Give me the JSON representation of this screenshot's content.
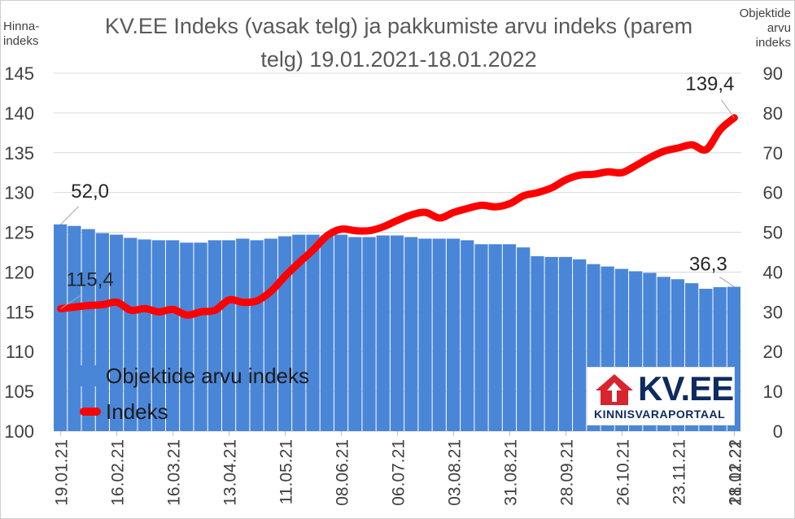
{
  "title_line1": "KV.EE Indeks (vasak telg) ja pakkumiste arvu indeks (parem",
  "title_line2": "telg) 19.01.2021-18.01.2022",
  "left_axis_caption": [
    "Hinna-",
    "indeks"
  ],
  "right_axis_caption": [
    "Objektide",
    "arvu",
    "indeks"
  ],
  "logo": {
    "brand": "KV.EE",
    "subtitle": "KINNISVARAPORTAAL",
    "icon": "house-arrow-icon"
  },
  "colors": {
    "bars": "#4a86d8",
    "line": "#ff0000",
    "grid": "#d9d9d9",
    "text": "#404040"
  },
  "chart_data": {
    "type": "bar+line",
    "left_axis": {
      "min": 100,
      "max": 145,
      "step": 5,
      "ticks": [
        "100",
        "105",
        "110",
        "115",
        "120",
        "125",
        "130",
        "135",
        "140",
        "145"
      ]
    },
    "right_axis": {
      "min": 0,
      "max": 90,
      "step": 10,
      "ticks": [
        "0",
        "10",
        "20",
        "30",
        "40",
        "50",
        "60",
        "70",
        "80",
        "90"
      ]
    },
    "x_tick_labels": [
      "19.01.21",
      "16.02.21",
      "16.03.21",
      "13.04.21",
      "11.05.21",
      "08.06.21",
      "06.07.21",
      "03.08.21",
      "31.08.21",
      "28.09.21",
      "26.10.21",
      "23.11.21",
      "21.12.21",
      "18.01.22"
    ],
    "grid": true,
    "legend_position": "bottom-left",
    "series": [
      {
        "name": "Objektide arvu indeks",
        "type": "bar",
        "axis": "right",
        "values": [
          52.0,
          51.6,
          50.8,
          49.8,
          49.4,
          48.6,
          48.2,
          48.0,
          48.0,
          47.4,
          47.4,
          48.0,
          48.0,
          48.4,
          48.0,
          48.4,
          49.0,
          49.4,
          49.4,
          49.2,
          49.4,
          48.8,
          48.8,
          49.2,
          49.2,
          48.8,
          48.4,
          48.4,
          48.4,
          48.0,
          47.0,
          47.0,
          47.0,
          46.2,
          44.0,
          43.8,
          43.8,
          43.2,
          42.0,
          41.4,
          40.8,
          40.2,
          39.8,
          38.8,
          38.2,
          37.2,
          35.8,
          36.2,
          36.3
        ]
      },
      {
        "name": "Indeks",
        "type": "line",
        "axis": "left",
        "values": [
          115.4,
          115.6,
          115.8,
          115.9,
          116.2,
          115.2,
          115.4,
          115.0,
          115.3,
          114.6,
          115.0,
          115.2,
          116.5,
          116.2,
          116.4,
          117.6,
          119.5,
          121.2,
          122.8,
          124.6,
          125.4,
          125.2,
          125.2,
          125.7,
          126.5,
          127.2,
          127.5,
          126.8,
          127.5,
          128.0,
          128.4,
          128.2,
          128.6,
          129.6,
          130.0,
          130.6,
          131.6,
          132.2,
          132.3,
          132.6,
          132.5,
          133.4,
          134.4,
          135.2,
          135.6,
          136.0,
          135.4,
          137.9,
          139.4
        ]
      }
    ],
    "annotations": [
      {
        "series": "Objektide arvu indeks",
        "point": "first",
        "text": "52,0"
      },
      {
        "series": "Objektide arvu indeks",
        "point": "last",
        "text": "36,3"
      },
      {
        "series": "Indeks",
        "point": "first",
        "text": "115,4"
      },
      {
        "series": "Indeks",
        "point": "last",
        "text": "139,4"
      }
    ]
  }
}
